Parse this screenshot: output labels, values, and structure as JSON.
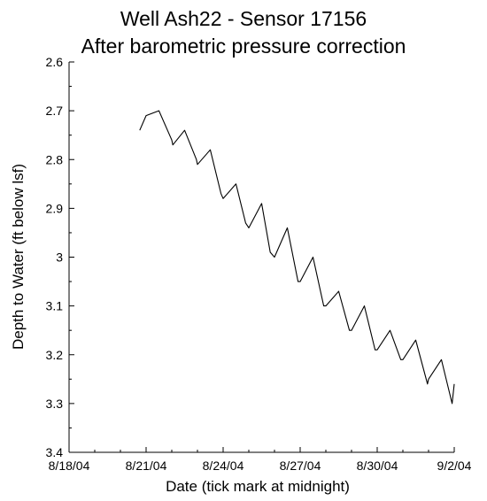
{
  "chart_data": {
    "type": "line",
    "title": "Well Ash22 - Sensor 17156",
    "subtitle": "After barometric pressure correction",
    "xlabel": "Date (tick mark at midnight)",
    "ylabel": "Depth to Water (ft below lsf)",
    "x_ticks": [
      "8/18/04",
      "8/21/04",
      "8/24/04",
      "8/27/04",
      "8/30/04",
      "9/2/04"
    ],
    "xlim": [
      "8/18/04",
      "9/2/04"
    ],
    "ylim": [
      2.6,
      3.4
    ],
    "y_inverted": true,
    "y_ticks": [
      "2.6",
      "2.7",
      "2.8",
      "2.9",
      "3",
      "3.1",
      "3.2",
      "3.3",
      "3.4"
    ],
    "grid": false,
    "line_color": "#000000",
    "series": [
      {
        "x": [
          "2004-08-20 18:00",
          "2004-08-21 00:00",
          "2004-08-21 12:00",
          "2004-08-22 00:00",
          "2004-08-22 01:00",
          "2004-08-22 12:00",
          "2004-08-22 23:00",
          "2004-08-23 00:00",
          "2004-08-23 12:00",
          "2004-08-23 22:00",
          "2004-08-24 00:00",
          "2004-08-24 12:00",
          "2004-08-24 21:00",
          "2004-08-25 00:00",
          "2004-08-25 12:00",
          "2004-08-25 20:00",
          "2004-08-26 00:00",
          "2004-08-26 12:00",
          "2004-08-26 22:00",
          "2004-08-27 00:00",
          "2004-08-27 12:00",
          "2004-08-27 22:00",
          "2004-08-28 00:00",
          "2004-08-28 12:00",
          "2004-08-28 22:00",
          "2004-08-29 00:00",
          "2004-08-29 12:00",
          "2004-08-29 22:00",
          "2004-08-30 00:00",
          "2004-08-30 12:00",
          "2004-08-30 22:00",
          "2004-08-31 00:00",
          "2004-08-31 12:00",
          "2004-08-31 23:00",
          "2004-09-01 00:00",
          "2004-09-01 12:00",
          "2004-09-01 22:00",
          "2004-09-02 00:00"
        ],
        "y": [
          2.74,
          2.71,
          2.7,
          2.76,
          2.77,
          2.74,
          2.8,
          2.81,
          2.78,
          2.87,
          2.88,
          2.85,
          2.93,
          2.94,
          2.89,
          2.99,
          3.0,
          2.94,
          3.05,
          3.05,
          3.0,
          3.1,
          3.1,
          3.07,
          3.15,
          3.15,
          3.1,
          3.19,
          3.19,
          3.15,
          3.21,
          3.21,
          3.17,
          3.26,
          3.25,
          3.21,
          3.3,
          3.26
        ]
      }
    ]
  }
}
